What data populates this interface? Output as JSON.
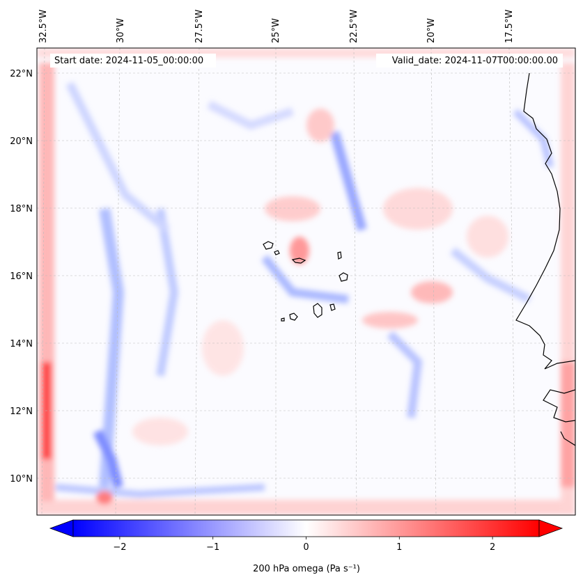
{
  "map": {
    "start_date_label": "Start date: 2024-11-05_00:00:00",
    "valid_date_label": "Valid_date: 2024-11-07T00:00:00.00",
    "longitude_labels": [
      "32.5°W",
      "30°W",
      "27.5°W",
      "25°W",
      "22.5°W",
      "20°W",
      "17.5°W"
    ],
    "latitude_labels": [
      "22°N",
      "20°N",
      "18°N",
      "16°N",
      "14°N",
      "12°N",
      "10°N"
    ],
    "field": "200 hPa omega",
    "color_positive": "#ff0000",
    "color_negative": "#0000ff",
    "coastline_color": "#000000"
  },
  "colorbar": {
    "label": "200 hPa omega (Pa s⁻¹)",
    "ticks": [
      {
        "value": -2,
        "label": "−2"
      },
      {
        "value": -1,
        "label": "−1"
      },
      {
        "value": 0,
        "label": "0"
      },
      {
        "value": 1,
        "label": "1"
      },
      {
        "value": 2,
        "label": "2"
      }
    ],
    "range": [
      -2.5,
      2.5
    ],
    "extend": "both"
  }
}
